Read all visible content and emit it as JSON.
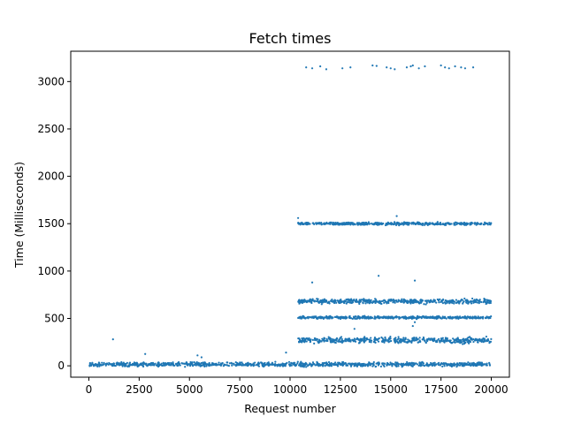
{
  "chart_data": {
    "type": "scatter",
    "title": "Fetch times",
    "xlabel": "Request number",
    "ylabel": "Time (Milliseconds)",
    "xlim": [
      -900,
      20900
    ],
    "ylim": [
      -120,
      3320
    ],
    "xticks": [
      0,
      2500,
      5000,
      7500,
      10000,
      12500,
      15000,
      17500,
      20000
    ],
    "yticks": [
      0,
      500,
      1000,
      1500,
      2000,
      2500,
      3000
    ],
    "legend": "none",
    "grid": false,
    "color": "#1f77b4",
    "series": [
      {
        "values_description": "",
        "bands": [
          {
            "x_range": [
              0,
              20000
            ],
            "y_center": 15,
            "y_spread": 30
          },
          {
            "x_range": [
              10400,
              20000
            ],
            "y_center": 270,
            "y_spread": 45
          },
          {
            "x_range": [
              10400,
              20000
            ],
            "y_center": 510,
            "y_spread": 18
          },
          {
            "x_range": [
              10400,
              20000
            ],
            "y_center": 680,
            "y_spread": 35
          },
          {
            "x_range": [
              10400,
              20000
            ],
            "y_center": 1500,
            "y_spread": 20
          }
        ],
        "points": [
          [
            1200,
            280
          ],
          [
            2800,
            125
          ],
          [
            5400,
            110
          ],
          [
            5600,
            90
          ],
          [
            9800,
            140
          ],
          [
            10400,
            1560
          ],
          [
            11100,
            880
          ],
          [
            14400,
            950
          ],
          [
            16200,
            900
          ],
          [
            15300,
            1580
          ],
          [
            13200,
            390
          ],
          [
            16100,
            420
          ],
          [
            16200,
            460
          ],
          [
            10800,
            3150
          ],
          [
            11100,
            3140
          ],
          [
            11500,
            3160
          ],
          [
            11800,
            3130
          ],
          [
            12600,
            3140
          ],
          [
            13000,
            3150
          ],
          [
            14100,
            3170
          ],
          [
            14300,
            3165
          ],
          [
            14800,
            3150
          ],
          [
            15000,
            3140
          ],
          [
            15200,
            3130
          ],
          [
            15800,
            3150
          ],
          [
            16000,
            3160
          ],
          [
            16100,
            3170
          ],
          [
            16400,
            3140
          ],
          [
            16700,
            3160
          ],
          [
            17500,
            3170
          ],
          [
            17700,
            3150
          ],
          [
            17900,
            3140
          ],
          [
            18200,
            3160
          ],
          [
            18500,
            3150
          ],
          [
            18700,
            3140
          ],
          [
            19100,
            3150
          ]
        ]
      }
    ]
  }
}
